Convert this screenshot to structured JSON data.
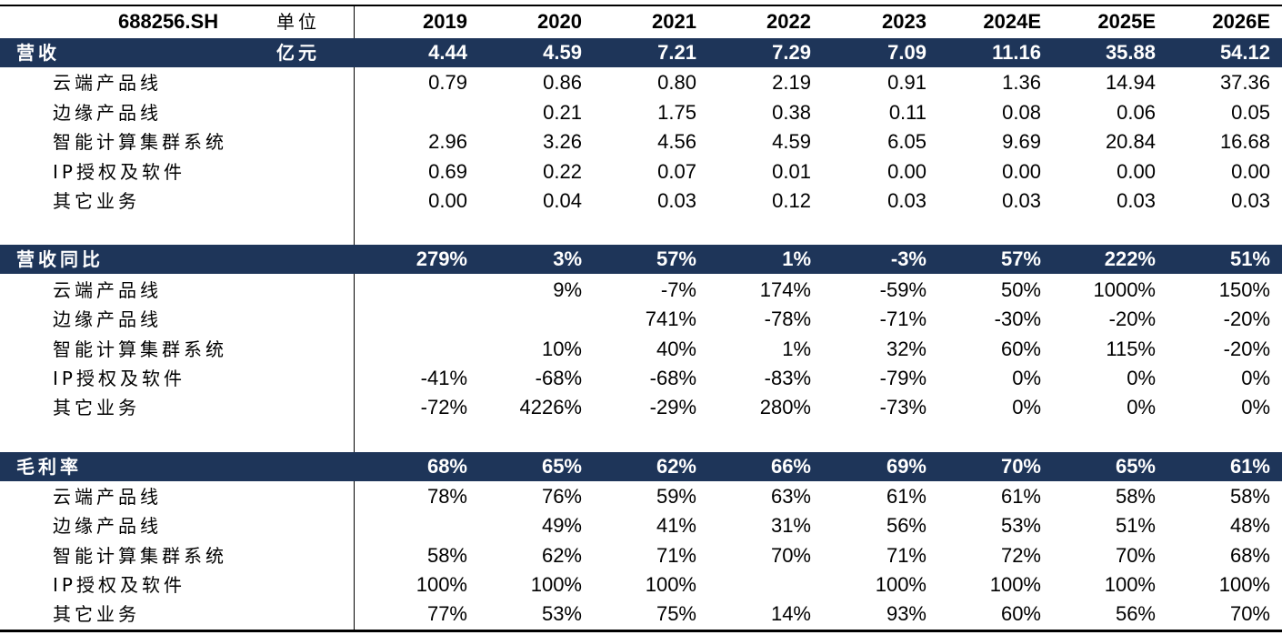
{
  "header": {
    "ticker": "688256.SH",
    "unit_label": "单位",
    "years": [
      "2019",
      "2020",
      "2021",
      "2022",
      "2023",
      "2024E",
      "2025E",
      "2026E"
    ]
  },
  "revenue": {
    "title": "营收",
    "unit": "亿元",
    "total": [
      "4.44",
      "4.59",
      "7.21",
      "7.29",
      "7.09",
      "11.16",
      "35.88",
      "54.12"
    ],
    "rows": [
      {
        "label": "云端产品线",
        "values": [
          "0.79",
          "0.86",
          "0.80",
          "2.19",
          "0.91",
          "1.36",
          "14.94",
          "37.36"
        ]
      },
      {
        "label": "边缘产品线",
        "values": [
          "",
          "0.21",
          "1.75",
          "0.38",
          "0.11",
          "0.08",
          "0.06",
          "0.05"
        ]
      },
      {
        "label": "智能计算集群系统",
        "values": [
          "2.96",
          "3.26",
          "4.56",
          "4.59",
          "6.05",
          "9.69",
          "20.84",
          "16.68"
        ]
      },
      {
        "label": "IP授权及软件",
        "values": [
          "0.69",
          "0.22",
          "0.07",
          "0.01",
          "0.00",
          "0.00",
          "0.00",
          "0.00"
        ]
      },
      {
        "label": "其它业务",
        "values": [
          "0.00",
          "0.04",
          "0.03",
          "0.12",
          "0.03",
          "0.03",
          "0.03",
          "0.03"
        ]
      }
    ]
  },
  "growth": {
    "title": "营收同比",
    "total": [
      "279%",
      "3%",
      "57%",
      "1%",
      "-3%",
      "57%",
      "222%",
      "51%"
    ],
    "rows": [
      {
        "label": "云端产品线",
        "values": [
          "",
          "9%",
          "-7%",
          "174%",
          "-59%",
          "50%",
          "1000%",
          "150%"
        ]
      },
      {
        "label": "边缘产品线",
        "values": [
          "",
          "",
          "741%",
          "-78%",
          "-71%",
          "-30%",
          "-20%",
          "-20%"
        ]
      },
      {
        "label": "智能计算集群系统",
        "values": [
          "",
          "10%",
          "40%",
          "1%",
          "32%",
          "60%",
          "115%",
          "-20%"
        ]
      },
      {
        "label": "IP授权及软件",
        "values": [
          "-41%",
          "-68%",
          "-68%",
          "-83%",
          "-79%",
          "0%",
          "0%",
          "0%"
        ]
      },
      {
        "label": "其它业务",
        "values": [
          "-72%",
          "4226%",
          "-29%",
          "280%",
          "-73%",
          "0%",
          "0%",
          "0%"
        ]
      }
    ]
  },
  "margin": {
    "title": "毛利率",
    "total": [
      "68%",
      "65%",
      "62%",
      "66%",
      "69%",
      "70%",
      "65%",
      "61%"
    ],
    "rows": [
      {
        "label": "云端产品线",
        "values": [
          "78%",
          "76%",
          "59%",
          "63%",
          "61%",
          "61%",
          "58%",
          "58%"
        ]
      },
      {
        "label": "边缘产品线",
        "values": [
          "",
          "49%",
          "41%",
          "31%",
          "56%",
          "53%",
          "51%",
          "48%"
        ]
      },
      {
        "label": "智能计算集群系统",
        "values": [
          "58%",
          "62%",
          "71%",
          "70%",
          "71%",
          "72%",
          "70%",
          "68%"
        ]
      },
      {
        "label": "IP授权及软件",
        "values": [
          "100%",
          "100%",
          "100%",
          "",
          "100%",
          "100%",
          "100%",
          "100%"
        ]
      },
      {
        "label": "其它业务",
        "values": [
          "77%",
          "53%",
          "75%",
          "14%",
          "93%",
          "60%",
          "56%",
          "70%"
        ]
      }
    ]
  },
  "colors": {
    "section_bg": "#1e3559",
    "section_text": "#ffffff"
  }
}
